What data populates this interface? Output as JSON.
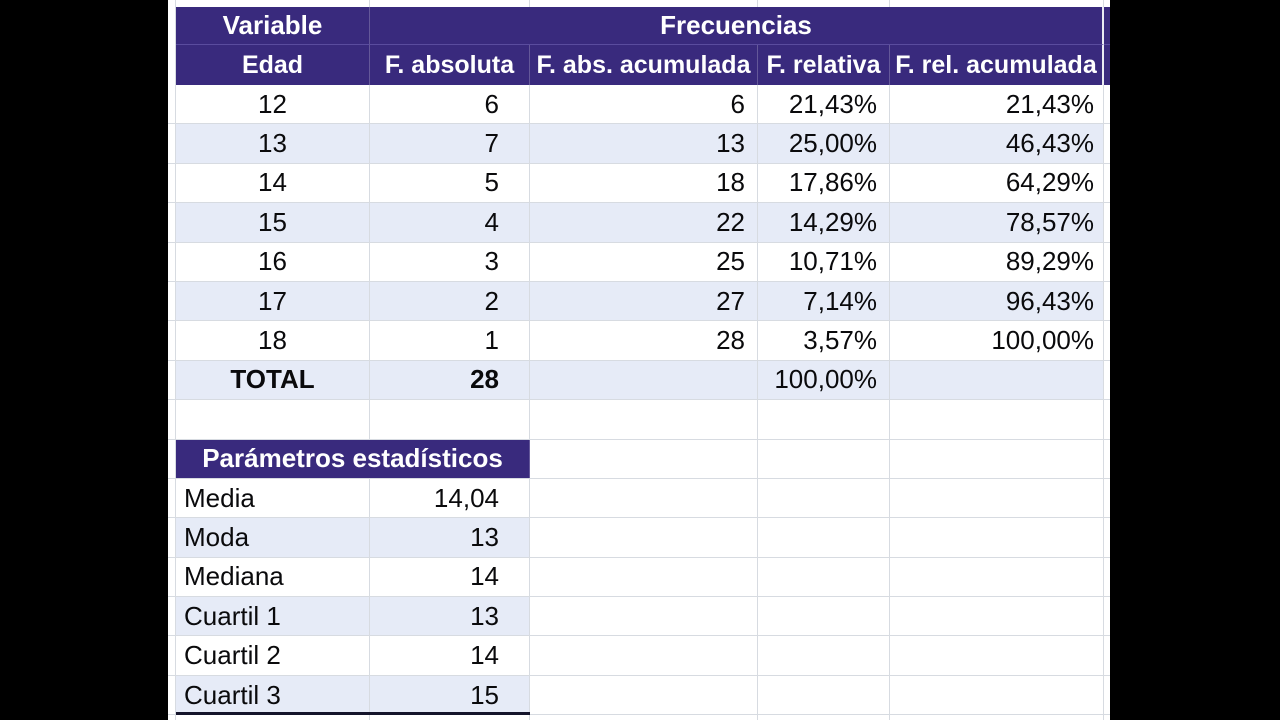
{
  "colors": {
    "header_purple": "#392A7D",
    "band_blue": "#E6EBF7",
    "gridline": "#D7DBE1",
    "letterbox": "#000000",
    "text": "#0A0A0C"
  },
  "freq_table": {
    "title_variable": "Variable",
    "title_frecuencias": "Frecuencias",
    "col_headers": [
      "Edad",
      "F. absoluta",
      "F. abs. acumulada",
      "F. relativa",
      "F. rel. acumulada"
    ],
    "rows": [
      [
        "12",
        "6",
        "6",
        "21,43%",
        "21,43%"
      ],
      [
        "13",
        "7",
        "13",
        "25,00%",
        "46,43%"
      ],
      [
        "14",
        "5",
        "18",
        "17,86%",
        "64,29%"
      ],
      [
        "15",
        "4",
        "22",
        "14,29%",
        "78,57%"
      ],
      [
        "16",
        "3",
        "25",
        "10,71%",
        "89,29%"
      ],
      [
        "17",
        "2",
        "27",
        "7,14%",
        "96,43%"
      ],
      [
        "18",
        "1",
        "28",
        "3,57%",
        "100,00%"
      ]
    ],
    "total_row": {
      "label": "TOTAL",
      "f_absoluta": "28",
      "f_abs_acumulada": "",
      "f_relativa": "100,00%",
      "f_rel_acumulada": ""
    }
  },
  "params_table": {
    "title": "Parámetros estadísticos",
    "rows": [
      [
        "Media",
        "14,04"
      ],
      [
        "Moda",
        "13"
      ],
      [
        "Mediana",
        "14"
      ],
      [
        "Cuartil 1",
        "13"
      ],
      [
        "Cuartil 2",
        "14"
      ],
      [
        "Cuartil 3",
        "15"
      ]
    ]
  }
}
